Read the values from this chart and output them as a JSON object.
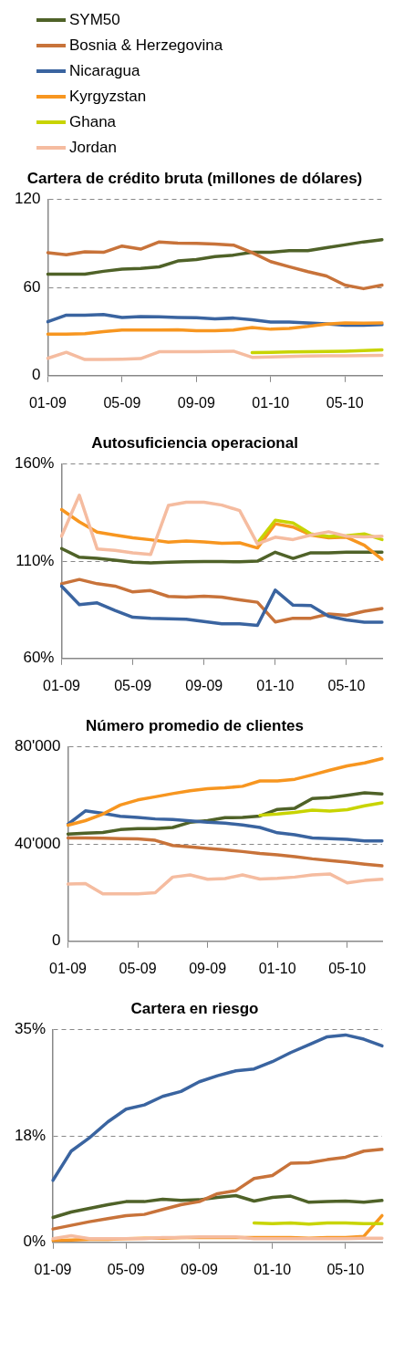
{
  "chart_data": [
    {
      "type": "line",
      "title": "Cartera de crédito bruta (millones de dólares)",
      "legend": "top",
      "grid": "y",
      "marker": "none",
      "categories": [
        "01-09",
        null,
        null,
        null,
        "05-09",
        null,
        null,
        null,
        "09-09",
        null,
        null,
        null,
        "01-10",
        null,
        null,
        null,
        "05-10",
        null,
        null
      ],
      "ylim": [
        0,
        120
      ],
      "yticks": [
        0,
        60,
        120
      ],
      "series": [
        {
          "name": "SYM50",
          "color": "#4f6228",
          "values": [
            69,
            69,
            69,
            71,
            72.5,
            73,
            74,
            78,
            79,
            81,
            82,
            84,
            84,
            85,
            85,
            87,
            89,
            91,
            92.5
          ]
        },
        {
          "name": "Bosnia & Herzegovina",
          "color": "#c8733a",
          "values": [
            83.7,
            82.3,
            84.3,
            83.9,
            88.2,
            86.1,
            91,
            90.2,
            90,
            89.6,
            88.8,
            83.7,
            77.6,
            74.1,
            70.8,
            67.8,
            61.6,
            59.2,
            61.6
          ]
        },
        {
          "name": "Nicaragua",
          "color": "#3a64a0",
          "values": [
            36.7,
            41.2,
            41.2,
            41.6,
            39.6,
            40.2,
            40,
            39.6,
            39.4,
            38.6,
            39.2,
            38,
            36.5,
            36.5,
            35.9,
            35.3,
            34.3,
            34.3,
            34.7
          ]
        },
        {
          "name": "Kyrgyzstan",
          "color": "#f79620",
          "values": [
            28.2,
            28.2,
            28.6,
            30,
            31,
            31,
            31,
            31.2,
            30.6,
            30.6,
            31,
            32.7,
            31.6,
            32.2,
            33.5,
            35.1,
            35.9,
            35.7,
            35.9
          ]
        },
        {
          "name": "Ghana",
          "color": "#c8d400",
          "values": [
            null,
            null,
            null,
            null,
            null,
            null,
            null,
            null,
            null,
            null,
            null,
            15.7,
            15.9,
            16.1,
            16.3,
            16.5,
            16.7,
            17.1,
            17.6
          ]
        },
        {
          "name": "Jordan",
          "color": "#f5bca0",
          "values": [
            11.8,
            15.9,
            11,
            11,
            11.2,
            11.6,
            16.3,
            16.3,
            16.3,
            16.5,
            16.7,
            12.5,
            12.7,
            13.1,
            13.3,
            13.5,
            13.5,
            13.7,
            13.9
          ]
        }
      ]
    },
    {
      "type": "line",
      "title": "Autosuficiencia operacional",
      "grid": "y",
      "marker": "none",
      "categories": [
        "01-09",
        null,
        null,
        null,
        "05-09",
        null,
        null,
        null,
        "09-09",
        null,
        null,
        null,
        "01-10",
        null,
        null,
        null,
        "05-10",
        null,
        null
      ],
      "ylim": [
        60,
        160
      ],
      "yticks": [
        {
          "value": 60,
          "label": "60%"
        },
        {
          "value": 110,
          "label": "110%"
        },
        {
          "value": 160,
          "label": "160%"
        }
      ],
      "series": [
        {
          "color": "#4f6228",
          "values": [
            116.5,
            112,
            111.4,
            110.5,
            109.5,
            109.1,
            109.5,
            109.7,
            109.8,
            109.8,
            109.7,
            110,
            114.6,
            111.4,
            114.3,
            114.3,
            114.6,
            114.6,
            114.6
          ]
        },
        {
          "color": "#c8733a",
          "values": [
            98.4,
            100.6,
            98.4,
            97.2,
            94.2,
            94.9,
            91.9,
            91.5,
            92,
            91.5,
            90.1,
            88.9,
            78.8,
            80.7,
            80.7,
            82.9,
            82.2,
            84.3,
            85.7
          ]
        },
        {
          "color": "#3a64a0",
          "values": [
            97.2,
            87.7,
            88.6,
            84.7,
            81.2,
            80.6,
            80.4,
            80.2,
            79,
            77.8,
            77.8,
            77,
            95.1,
            87.4,
            87.2,
            81.7,
            79.8,
            78.7,
            78.7
          ]
        },
        {
          "color": "#f79620",
          "values": [
            136.5,
            130.2,
            124.9,
            123.4,
            122,
            121,
            119.8,
            120.3,
            119.9,
            119.2,
            119.4,
            116.8,
            129.2,
            127.5,
            123.4,
            122,
            122.3,
            118.2,
            110.9
          ]
        },
        {
          "color": "#c8d400",
          "values": [
            null,
            null,
            null,
            null,
            null,
            null,
            null,
            null,
            null,
            null,
            null,
            119.4,
            131,
            129.6,
            124,
            122.7,
            123,
            124,
            121.1
          ]
        },
        {
          "color": "#f5bca0",
          "values": [
            122.8,
            143.9,
            116.3,
            115.6,
            114.3,
            113.4,
            138.6,
            140.3,
            140.3,
            138.8,
            136,
            118.9,
            122.3,
            121.1,
            123.4,
            125.1,
            122.8,
            122.5,
            122.8
          ]
        }
      ]
    },
    {
      "type": "line",
      "title": "Número promedio de clientes",
      "grid": "y",
      "marker": "none",
      "categories": [
        "01-09",
        null,
        null,
        null,
        "05-09",
        null,
        null,
        null,
        "09-09",
        null,
        null,
        null,
        "01-10",
        null,
        null,
        null,
        "05-10",
        null,
        null
      ],
      "ylim": [
        0,
        80000
      ],
      "yticks": [
        0,
        {
          "value": 40000,
          "label": "40'000"
        },
        {
          "value": 80000,
          "label": "80'000"
        }
      ],
      "series": [
        {
          "color": "#4f6228",
          "values": [
            44100,
            44400,
            44700,
            45900,
            46300,
            46300,
            46800,
            48900,
            49600,
            50800,
            50900,
            51500,
            54200,
            54700,
            58700,
            59100,
            60000,
            61000,
            60600
          ]
        },
        {
          "color": "#c8733a",
          "values": [
            42500,
            42500,
            42400,
            42200,
            42100,
            41500,
            39400,
            38800,
            38200,
            37600,
            36900,
            36100,
            35500,
            34800,
            33900,
            33200,
            32500,
            31700,
            31000
          ]
        },
        {
          "color": "#3a64a0",
          "values": [
            48100,
            53600,
            52600,
            51400,
            50900,
            50300,
            50100,
            49500,
            48900,
            48600,
            47800,
            46800,
            44600,
            43800,
            42500,
            42200,
            41900,
            41300,
            41300
          ]
        },
        {
          "color": "#f79620",
          "values": [
            47700,
            49600,
            52300,
            56000,
            58100,
            59400,
            60700,
            61900,
            62700,
            63100,
            63700,
            65900,
            65900,
            66600,
            68400,
            70300,
            72100,
            73300,
            75100
          ]
        },
        {
          "color": "#c8d400",
          "values": [
            null,
            null,
            null,
            null,
            null,
            null,
            null,
            null,
            null,
            null,
            null,
            51800,
            52300,
            53000,
            53900,
            53500,
            54100,
            55700,
            56900
          ]
        },
        {
          "color": "#f5bca0",
          "values": [
            23500,
            23700,
            19500,
            19500,
            19500,
            20000,
            26400,
            27300,
            25500,
            25800,
            27300,
            25600,
            25900,
            26400,
            27300,
            27700,
            24000,
            25000,
            25500
          ]
        }
      ]
    },
    {
      "type": "line",
      "title": "Cartera en riesgo",
      "grid": "y",
      "marker": "none",
      "categories": [
        "01-09",
        null,
        null,
        null,
        "05-09",
        null,
        null,
        null,
        "09-09",
        null,
        null,
        null,
        "01-10",
        null,
        null,
        null,
        "05-10",
        null,
        null
      ],
      "ylim": [
        0,
        35
      ],
      "yticks": [
        {
          "value": 0,
          "label": "0%"
        },
        {
          "value": 17.5,
          "label": "18%"
        },
        {
          "value": 35,
          "label": "35%"
        }
      ],
      "series": [
        {
          "color": "#4f6228",
          "values": [
            4.1,
            5.0,
            5.6,
            6.2,
            6.7,
            6.7,
            7.1,
            6.9,
            7.0,
            7.4,
            7.7,
            6.8,
            7.4,
            7.6,
            6.6,
            6.7,
            6.8,
            6.6,
            6.9
          ]
        },
        {
          "color": "#c8733a",
          "values": [
            2.2,
            2.8,
            3.4,
            3.9,
            4.4,
            4.6,
            5.4,
            6.2,
            6.7,
            8.0,
            8.5,
            10.5,
            11.0,
            13.0,
            13.1,
            13.6,
            14.0,
            15.0,
            15.3
          ]
        },
        {
          "color": "#3a64a0",
          "values": [
            10.2,
            15.0,
            17.2,
            19.8,
            21.9,
            22.6,
            24.0,
            24.8,
            26.4,
            27.4,
            28.2,
            28.5,
            29.7,
            31.2,
            32.5,
            33.8,
            34.1,
            33.4,
            32.3
          ]
        },
        {
          "color": "#f79620",
          "values": [
            0.3,
            0.4,
            0.5,
            0.5,
            0.6,
            0.7,
            0.7,
            0.8,
            0.8,
            0.8,
            0.8,
            0.8,
            0.8,
            0.8,
            0.7,
            0.8,
            0.8,
            1.0,
            4.4
          ]
        },
        {
          "color": "#c8d400",
          "values": [
            null,
            null,
            null,
            null,
            null,
            null,
            null,
            null,
            null,
            null,
            null,
            3.2,
            3.1,
            3.2,
            3.0,
            3.2,
            3.2,
            3.1,
            3.1
          ]
        },
        {
          "color": "#f5bca0",
          "values": [
            0.6,
            1.1,
            0.6,
            0.6,
            0.6,
            0.6,
            0.8,
            0.8,
            0.9,
            0.9,
            0.9,
            0.6,
            0.6,
            0.6,
            0.6,
            0.6,
            0.6,
            0.7,
            0.7
          ]
        }
      ]
    }
  ]
}
